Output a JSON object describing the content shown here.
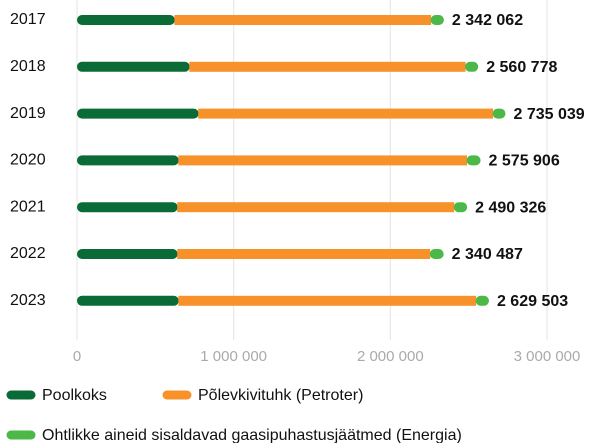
{
  "chart_data": {
    "type": "stacked-bar-horizontal",
    "categories": [
      "2017",
      "2018",
      "2019",
      "2020",
      "2021",
      "2022",
      "2023"
    ],
    "series": [
      {
        "name": "Poolkoks",
        "color": "#0b6b36",
        "values": [
          625000,
          720000,
          777000,
          650000,
          643000,
          643000,
          650000
        ]
      },
      {
        "name": "Põlevkivituhk (Petroter)",
        "color": "#f7922a",
        "values": [
          1635000,
          1760000,
          1879000,
          1840000,
          1765000,
          1612000,
          1898000
        ]
      },
      {
        "name": "Ohtlikke aineid sisaldavad gaasipuhastusjäätmed (Energia)",
        "color": "#4cb848",
        "values": [
          82062,
          80778,
          79039,
          85906,
          82326,
          85487,
          81503
        ]
      }
    ],
    "totals": [
      2342062,
      2560778,
      2735039,
      2575906,
      2490326,
      2340487,
      2629503
    ],
    "total_labels": [
      "2 342 062",
      "2 560 778",
      "2 735 039",
      "2 575 906",
      "2 490 326",
      "2 340 487",
      "2 629 503"
    ],
    "xlim": [
      0,
      3000000
    ],
    "xticks": [
      0,
      {
        "value": 1000000,
        "label": "1 000 000"
      },
      {
        "value": 2000000,
        "label": "2 000 000"
      },
      {
        "value": 3000000,
        "label": "3 000 000"
      }
    ],
    "grid": true
  }
}
